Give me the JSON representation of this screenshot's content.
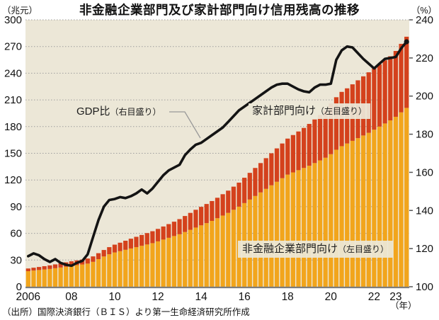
{
  "title": "非金融企業部門及び家計部門向け信用残高の推移",
  "source": "（出所）国際決済銀行（ＢＩＳ）より第一生命経済研究所作成",
  "left_axis": {
    "unit": "（兆元）",
    "min": 0,
    "max": 300,
    "step": 30
  },
  "right_axis": {
    "unit": "（%）",
    "min": 100,
    "max": 240,
    "step": 20
  },
  "x_axis": {
    "unit": "（年）",
    "labels": [
      {
        "text": "2006",
        "quarter": 0
      },
      {
        "text": "08",
        "quarter": 8
      },
      {
        "text": "10",
        "quarter": 16
      },
      {
        "text": "12",
        "quarter": 24
      },
      {
        "text": "14",
        "quarter": 32
      },
      {
        "text": "16",
        "quarter": 40
      },
      {
        "text": "18",
        "quarter": 48
      },
      {
        "text": "20",
        "quarter": 56
      },
      {
        "text": "22",
        "quarter": 64
      },
      {
        "text": "23",
        "quarter": 68
      }
    ]
  },
  "annotations": {
    "gdp_line": {
      "label": "GDP比",
      "note": "（右目盛り）"
    },
    "household": {
      "label": "家計部門向け",
      "note": "（左目盛り）"
    },
    "corporate": {
      "label": "非金融企業部門向け",
      "note": "（左目盛り）"
    }
  },
  "colors": {
    "corporate": "#f2a51c",
    "household": "#d4411c",
    "line": "#141414",
    "plot_bg": "#ece7d7",
    "grid": "#9e9e9e"
  },
  "chart_data": {
    "type": "bar",
    "subtype": "stacked-bars-with-line",
    "x_start": "2006Q1",
    "x_end": "2023Q3",
    "frequency": "quarterly",
    "xlabel": "年",
    "left_ylabel": "兆元",
    "right_ylabel": "%",
    "left_ylim": [
      0,
      300
    ],
    "right_ylim": [
      100,
      240
    ],
    "grid": "horizontal-dotted",
    "legend_position": "in-plot-annotations",
    "series": [
      {
        "name": "非金融企業部門向け（左目盛り）",
        "type": "bar",
        "stack": "credit",
        "axis": "left",
        "values": [
          17.5,
          18.2,
          18.8,
          19.4,
          20,
          20.8,
          21.6,
          22.5,
          23.5,
          24.3,
          25,
          26,
          28,
          31,
          34,
          36.5,
          38.5,
          40,
          41.5,
          43,
          44.5,
          46,
          47.5,
          49,
          51,
          53,
          55,
          57,
          59,
          61.5,
          64,
          66.5,
          69,
          71.5,
          74,
          77,
          80,
          83,
          86.5,
          90,
          94,
          98,
          102,
          106,
          110,
          114,
          118,
          122,
          126,
          128.5,
          131,
          133.5,
          136,
          139,
          142,
          145,
          149,
          154,
          158,
          161,
          164,
          167,
          170,
          173,
          176.5,
          180,
          183.5,
          187,
          191,
          196,
          201
        ]
      },
      {
        "name": "家計部門向け（左目盛り）",
        "type": "bar",
        "stack": "credit",
        "axis": "left",
        "values": [
          3,
          3.2,
          3.4,
          3.7,
          4,
          4.3,
          4.6,
          4.9,
          5.1,
          5.3,
          5.5,
          5.7,
          6.1,
          6.7,
          7.3,
          8,
          8.8,
          9.5,
          10.2,
          11,
          11.6,
          12.2,
          12.8,
          13.4,
          14,
          14.7,
          15.4,
          16.1,
          17,
          18,
          19,
          20,
          20.8,
          21.5,
          22.3,
          23,
          24,
          25,
          26,
          27,
          28.5,
          30,
          31.5,
          33,
          34.5,
          36,
          37.5,
          39,
          40.5,
          42,
          43.5,
          45,
          47,
          49,
          51,
          53,
          57,
          59,
          61,
          62,
          63.5,
          65,
          66.5,
          68,
          69,
          70,
          71,
          72,
          74,
          77,
          80
        ]
      },
      {
        "name": "GDP比（右目盛り）",
        "type": "line",
        "axis": "right",
        "end_marker": "dot",
        "values": [
          116,
          117.5,
          116.5,
          114.5,
          113,
          114.5,
          112.5,
          111.5,
          111,
          112.5,
          113.5,
          117,
          126,
          135,
          142,
          145.5,
          146,
          147,
          146.5,
          147.5,
          149,
          151,
          149,
          151.5,
          155,
          158.5,
          161,
          162.5,
          164,
          169,
          172,
          174.5,
          175.5,
          177.5,
          179.5,
          181.5,
          183.5,
          186.5,
          189.5,
          192.5,
          194.5,
          196.5,
          198.5,
          200.5,
          202.5,
          204.5,
          206,
          206.5,
          206.5,
          205,
          203.5,
          202.5,
          202,
          204.5,
          206,
          206,
          206.5,
          219,
          224,
          226,
          225.5,
          222.5,
          219.5,
          217,
          214.5,
          217,
          219.5,
          220,
          220.5,
          225,
          228.5
        ]
      }
    ]
  }
}
